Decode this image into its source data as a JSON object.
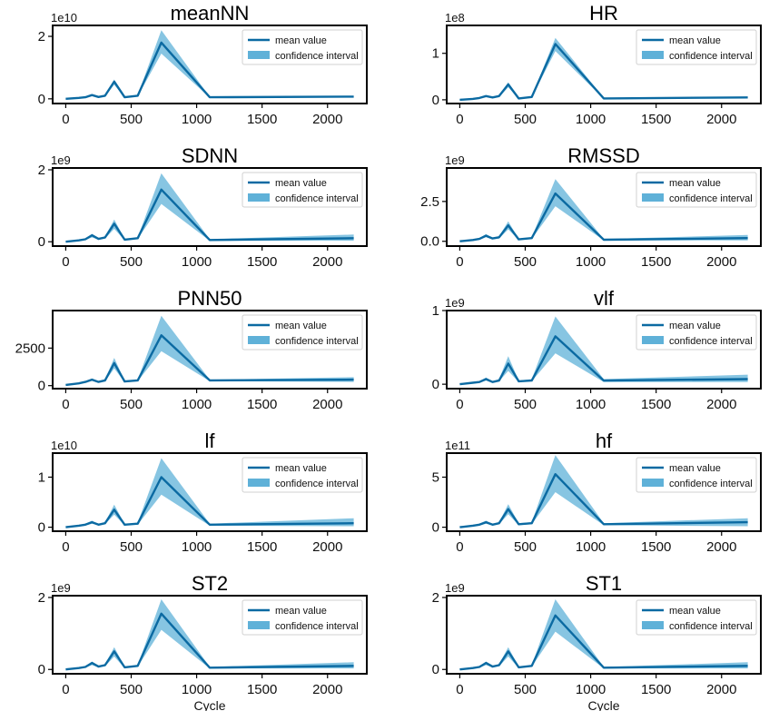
{
  "legend": {
    "mean_label": "mean value",
    "ci_label": "confidence interval"
  },
  "colors": {
    "mean": "#0b6aa2",
    "ci": "#5fb1d8"
  },
  "chart_data": [
    {
      "type": "line",
      "title": "meanNN",
      "exponent": "1e10",
      "xlabel": "",
      "xlim": [
        -100,
        2300
      ],
      "xticks": [
        0,
        500,
        1000,
        1500,
        2000
      ],
      "ylim": [
        -0.15,
        2.35
      ],
      "yticks": [
        {
          "v": 0,
          "label": "0"
        },
        {
          "v": 2,
          "label": "2"
        }
      ],
      "x": [
        0,
        100,
        150,
        200,
        250,
        300,
        370,
        450,
        550,
        730,
        1100,
        2200
      ],
      "mean": [
        0.0,
        0.03,
        0.05,
        0.12,
        0.06,
        0.1,
        0.55,
        0.05,
        0.1,
        1.8,
        0.05,
        0.07
      ],
      "ci_low": [
        0.0,
        0.02,
        0.04,
        0.1,
        0.05,
        0.08,
        0.45,
        0.04,
        0.08,
        1.45,
        0.04,
        0.05
      ],
      "ci_high": [
        0.0,
        0.04,
        0.06,
        0.14,
        0.07,
        0.12,
        0.62,
        0.06,
        0.12,
        2.2,
        0.06,
        0.09
      ]
    },
    {
      "type": "line",
      "title": "HR",
      "exponent": "1e8",
      "xlabel": "",
      "xlim": [
        -100,
        2300
      ],
      "xticks": [
        0,
        500,
        1000,
        1500,
        2000
      ],
      "ylim": [
        -0.08,
        1.6
      ],
      "yticks": [
        {
          "v": 0,
          "label": "0"
        },
        {
          "v": 1,
          "label": "1"
        }
      ],
      "x": [
        0,
        100,
        150,
        200,
        250,
        300,
        370,
        450,
        550,
        730,
        1100,
        2200
      ],
      "mean": [
        0.0,
        0.02,
        0.04,
        0.08,
        0.05,
        0.08,
        0.33,
        0.03,
        0.06,
        1.2,
        0.03,
        0.05
      ],
      "ci_low": [
        0.0,
        0.015,
        0.03,
        0.06,
        0.04,
        0.06,
        0.27,
        0.02,
        0.05,
        1.05,
        0.02,
        0.04
      ],
      "ci_high": [
        0.0,
        0.025,
        0.05,
        0.1,
        0.06,
        0.1,
        0.38,
        0.04,
        0.07,
        1.33,
        0.04,
        0.06
      ]
    },
    {
      "type": "line",
      "title": "SDNN",
      "exponent": "1e9",
      "xlabel": "",
      "xlim": [
        -100,
        2300
      ],
      "xticks": [
        0,
        500,
        1000,
        1500,
        2000
      ],
      "ylim": [
        -0.12,
        2.05
      ],
      "yticks": [
        {
          "v": 0,
          "label": "0"
        },
        {
          "v": 2,
          "label": "2"
        }
      ],
      "x": [
        0,
        100,
        150,
        200,
        250,
        300,
        370,
        450,
        550,
        730,
        1100,
        2200
      ],
      "mean": [
        0.0,
        0.04,
        0.07,
        0.18,
        0.08,
        0.12,
        0.5,
        0.06,
        0.1,
        1.45,
        0.05,
        0.1
      ],
      "ci_low": [
        0.0,
        0.02,
        0.05,
        0.12,
        0.06,
        0.09,
        0.36,
        0.04,
        0.08,
        1.05,
        0.03,
        0.03
      ],
      "ci_high": [
        0.0,
        0.06,
        0.09,
        0.22,
        0.1,
        0.15,
        0.62,
        0.08,
        0.12,
        1.9,
        0.07,
        0.2
      ]
    },
    {
      "type": "line",
      "title": "RMSSD",
      "exponent": "1e9",
      "xlabel": "",
      "xlim": [
        -100,
        2300
      ],
      "xticks": [
        0,
        500,
        1000,
        1500,
        2000
      ],
      "ylim": [
        -0.3,
        4.6
      ],
      "yticks": [
        {
          "v": 0,
          "label": "0.0"
        },
        {
          "v": 2.5,
          "label": "2.5"
        }
      ],
      "x": [
        0,
        100,
        150,
        200,
        250,
        300,
        370,
        450,
        550,
        730,
        1100,
        2200
      ],
      "mean": [
        0.0,
        0.08,
        0.15,
        0.35,
        0.18,
        0.25,
        1.0,
        0.12,
        0.2,
        3.0,
        0.1,
        0.2
      ],
      "ci_low": [
        0.0,
        0.05,
        0.1,
        0.25,
        0.12,
        0.18,
        0.75,
        0.08,
        0.15,
        2.2,
        0.06,
        0.06
      ],
      "ci_high": [
        0.0,
        0.1,
        0.2,
        0.45,
        0.22,
        0.32,
        1.25,
        0.15,
        0.25,
        3.9,
        0.14,
        0.4
      ]
    },
    {
      "type": "line",
      "title": "PNN50",
      "exponent": "",
      "xlabel": "",
      "xlim": [
        -100,
        2300
      ],
      "xticks": [
        0,
        500,
        1000,
        1500,
        2000
      ],
      "ylim": [
        -200,
        5000
      ],
      "yticks": [
        {
          "v": 0,
          "label": "0"
        },
        {
          "v": 2500,
          "label": "2500"
        }
      ],
      "x": [
        0,
        100,
        150,
        200,
        250,
        300,
        370,
        450,
        550,
        730,
        1100,
        2200
      ],
      "mean": [
        50,
        150,
        250,
        400,
        250,
        350,
        1500,
        280,
        350,
        3350,
        350,
        400
      ],
      "ci_low": [
        40,
        120,
        200,
        320,
        200,
        280,
        1150,
        220,
        300,
        2300,
        300,
        250
      ],
      "ci_high": [
        60,
        180,
        300,
        480,
        300,
        420,
        1850,
        340,
        400,
        4650,
        400,
        560
      ]
    },
    {
      "type": "line",
      "title": "vlf",
      "exponent": "1e9",
      "xlabel": "",
      "xlim": [
        -100,
        2300
      ],
      "xticks": [
        0,
        500,
        1000,
        1500,
        2000
      ],
      "ylim": [
        -0.06,
        1.0
      ],
      "yticks": [
        {
          "v": 0,
          "label": "0"
        },
        {
          "v": 1,
          "label": "1"
        }
      ],
      "x": [
        0,
        100,
        150,
        200,
        250,
        300,
        370,
        450,
        550,
        730,
        1100,
        2200
      ],
      "mean": [
        0.0,
        0.02,
        0.03,
        0.07,
        0.03,
        0.05,
        0.28,
        0.04,
        0.05,
        0.65,
        0.05,
        0.07
      ],
      "ci_low": [
        0.0,
        0.01,
        0.02,
        0.05,
        0.02,
        0.04,
        0.18,
        0.03,
        0.04,
        0.42,
        0.03,
        0.03
      ],
      "ci_high": [
        0.0,
        0.03,
        0.04,
        0.09,
        0.04,
        0.07,
        0.38,
        0.05,
        0.07,
        0.92,
        0.07,
        0.13
      ]
    },
    {
      "type": "line",
      "title": "lf",
      "exponent": "1e10",
      "xlabel": "",
      "xlim": [
        -100,
        2300
      ],
      "xticks": [
        0,
        500,
        1000,
        1500,
        2000
      ],
      "ylim": [
        -0.08,
        1.48
      ],
      "yticks": [
        {
          "v": 0,
          "label": "0"
        },
        {
          "v": 1,
          "label": "1"
        }
      ],
      "x": [
        0,
        100,
        150,
        200,
        250,
        300,
        370,
        450,
        550,
        730,
        1100,
        2200
      ],
      "mean": [
        0.0,
        0.03,
        0.05,
        0.1,
        0.05,
        0.08,
        0.35,
        0.05,
        0.07,
        1.0,
        0.05,
        0.08
      ],
      "ci_low": [
        0.0,
        0.02,
        0.03,
        0.07,
        0.04,
        0.06,
        0.25,
        0.04,
        0.05,
        0.65,
        0.03,
        0.02
      ],
      "ci_high": [
        0.0,
        0.04,
        0.07,
        0.13,
        0.06,
        0.1,
        0.45,
        0.06,
        0.09,
        1.38,
        0.07,
        0.18
      ]
    },
    {
      "type": "line",
      "title": "hf",
      "exponent": "1e11",
      "xlabel": "",
      "xlim": [
        -100,
        2300
      ],
      "xticks": [
        0,
        500,
        1000,
        1500,
        2000
      ],
      "ylim": [
        -0.4,
        7.4
      ],
      "yticks": [
        {
          "v": 0,
          "label": "0"
        },
        {
          "v": 5,
          "label": "5"
        }
      ],
      "x": [
        0,
        100,
        150,
        200,
        250,
        300,
        370,
        450,
        550,
        730,
        1100,
        2200
      ],
      "mean": [
        0.0,
        0.15,
        0.25,
        0.5,
        0.25,
        0.4,
        1.8,
        0.3,
        0.4,
        5.3,
        0.3,
        0.5
      ],
      "ci_low": [
        0.0,
        0.1,
        0.15,
        0.35,
        0.18,
        0.3,
        1.3,
        0.2,
        0.3,
        3.5,
        0.2,
        0.1
      ],
      "ci_high": [
        0.0,
        0.2,
        0.35,
        0.65,
        0.32,
        0.5,
        2.3,
        0.4,
        0.5,
        7.2,
        0.4,
        0.9
      ]
    },
    {
      "type": "line",
      "title": "ST2",
      "exponent": "1e9",
      "xlabel": "Cycle",
      "xlim": [
        -100,
        2300
      ],
      "xticks": [
        0,
        500,
        1000,
        1500,
        2000
      ],
      "ylim": [
        -0.12,
        2.05
      ],
      "yticks": [
        {
          "v": 0,
          "label": "0"
        },
        {
          "v": 2,
          "label": "2"
        }
      ],
      "x": [
        0,
        100,
        150,
        200,
        250,
        300,
        370,
        450,
        550,
        730,
        1100,
        2200
      ],
      "mean": [
        0.0,
        0.04,
        0.07,
        0.18,
        0.08,
        0.12,
        0.5,
        0.06,
        0.1,
        1.55,
        0.05,
        0.1
      ],
      "ci_low": [
        0.0,
        0.02,
        0.05,
        0.12,
        0.06,
        0.09,
        0.36,
        0.04,
        0.08,
        1.1,
        0.03,
        0.03
      ],
      "ci_high": [
        0.0,
        0.06,
        0.09,
        0.22,
        0.1,
        0.15,
        0.62,
        0.08,
        0.12,
        1.95,
        0.07,
        0.2
      ]
    },
    {
      "type": "line",
      "title": "ST1",
      "exponent": "1e9",
      "xlabel": "Cycle",
      "xlim": [
        -100,
        2300
      ],
      "xticks": [
        0,
        500,
        1000,
        1500,
        2000
      ],
      "ylim": [
        -0.12,
        2.05
      ],
      "yticks": [
        {
          "v": 0,
          "label": "0"
        },
        {
          "v": 2,
          "label": "2"
        }
      ],
      "x": [
        0,
        100,
        150,
        200,
        250,
        300,
        370,
        450,
        550,
        730,
        1100,
        2200
      ],
      "mean": [
        0.0,
        0.04,
        0.07,
        0.18,
        0.08,
        0.12,
        0.5,
        0.06,
        0.1,
        1.5,
        0.05,
        0.1
      ],
      "ci_low": [
        0.0,
        0.02,
        0.05,
        0.12,
        0.06,
        0.09,
        0.36,
        0.04,
        0.08,
        1.05,
        0.03,
        0.03
      ],
      "ci_high": [
        0.0,
        0.06,
        0.09,
        0.22,
        0.1,
        0.15,
        0.62,
        0.08,
        0.12,
        1.95,
        0.07,
        0.2
      ]
    }
  ]
}
